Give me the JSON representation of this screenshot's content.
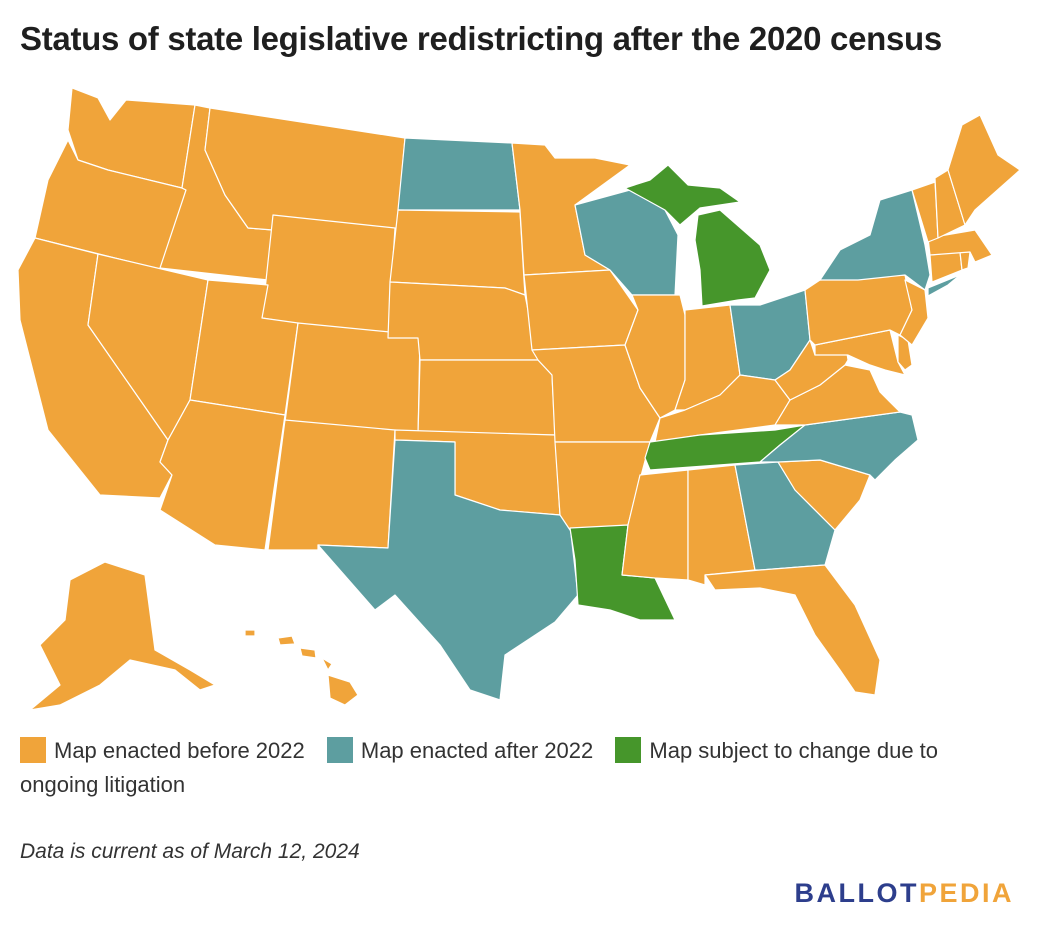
{
  "title": "Status of state legislative redistricting after the 2020 census",
  "legend": [
    {
      "label": "Map enacted before 2022",
      "color": "#f0a43a",
      "category": "before"
    },
    {
      "label": "Map enacted after 2022",
      "color": "#5d9ea0",
      "category": "after"
    },
    {
      "label": "Map subject to change due to ongoing litigation",
      "color": "#46962b",
      "category": "litigation"
    }
  ],
  "note": "Data is current as of March 12, 2024",
  "logo": {
    "part1": "BALLOT",
    "part2": "PEDIA"
  },
  "states": {
    "WA": "before",
    "OR": "before",
    "CA": "before",
    "NV": "before",
    "ID": "before",
    "MT": "before",
    "WY": "before",
    "UT": "before",
    "AZ": "before",
    "CO": "before",
    "NM": "before",
    "ND": "after",
    "SD": "before",
    "NE": "before",
    "KS": "before",
    "OK": "before",
    "TX": "after",
    "MN": "before",
    "IA": "before",
    "MO": "before",
    "AR": "before",
    "LA": "litigation",
    "WI": "after",
    "IL": "before",
    "MI": "litigation",
    "IN": "before",
    "OH": "after",
    "KY": "before",
    "TN": "litigation",
    "MS": "before",
    "AL": "before",
    "GA": "after",
    "FL": "before",
    "SC": "before",
    "NC": "after",
    "VA": "before",
    "WV": "before",
    "MD": "before",
    "DE": "before",
    "PA": "before",
    "NJ": "before",
    "NY": "after",
    "CT": "before",
    "RI": "before",
    "MA": "before",
    "VT": "before",
    "NH": "before",
    "ME": "before",
    "AK": "before",
    "HI": "before"
  }
}
